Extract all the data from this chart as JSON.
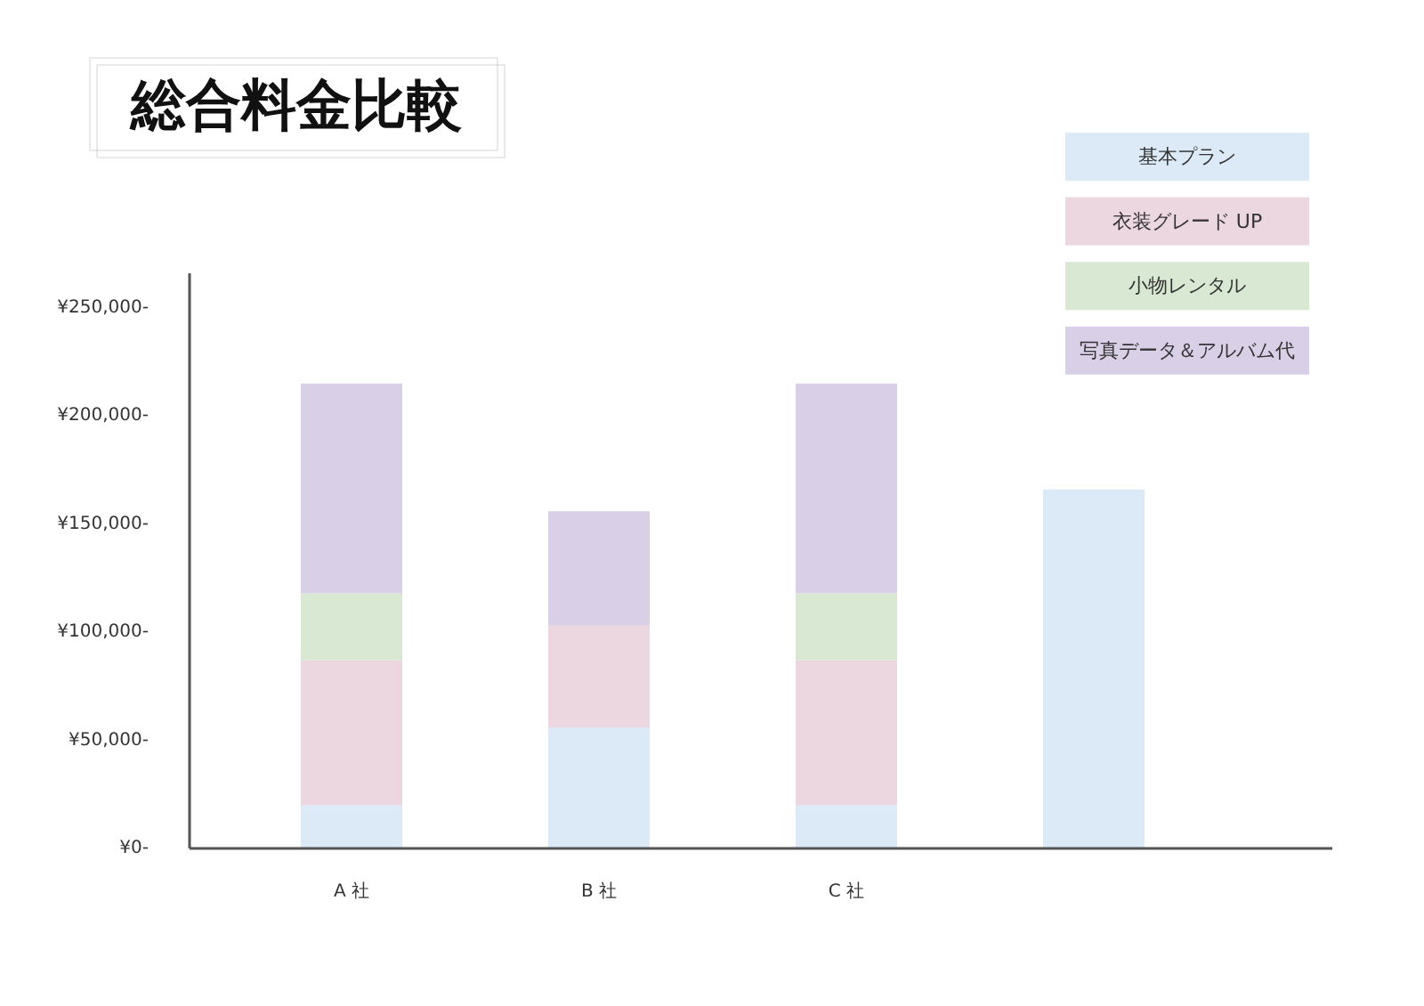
{
  "chart_data": {
    "type": "bar",
    "title": "総合料金比較",
    "categories": [
      "A 社",
      "B 社",
      "C 社",
      null
    ],
    "stacked": true,
    "series": [
      {
        "name": "基本プラン",
        "color": "#dceaf7",
        "values": [
          20000,
          56000,
          20000,
          166000
        ]
      },
      {
        "name": "衣装グレード UP",
        "color": "#ecd6df",
        "values": [
          67000,
          47000,
          67000,
          null
        ]
      },
      {
        "name": "小物レンタル",
        "color": "#d8e8d3",
        "values": [
          31000,
          null,
          31000,
          null
        ]
      },
      {
        "name": "写真データ＆アルバム代",
        "color": "#d9cfe7",
        "values": [
          97000,
          53000,
          97000,
          null
        ]
      }
    ],
    "ylim": [
      0,
      266000
    ],
    "yticks": [
      {
        "value": 0,
        "label": "¥0-"
      },
      {
        "value": 50000,
        "label": "¥50,000-"
      },
      {
        "value": 100000,
        "label": "¥100,000-"
      },
      {
        "value": 150000,
        "label": "¥150,000-"
      },
      {
        "value": 200000,
        "label": "¥200,000-"
      },
      {
        "value": 250000,
        "label": "¥250,000-"
      }
    ],
    "grid": false,
    "legend": "top right"
  }
}
